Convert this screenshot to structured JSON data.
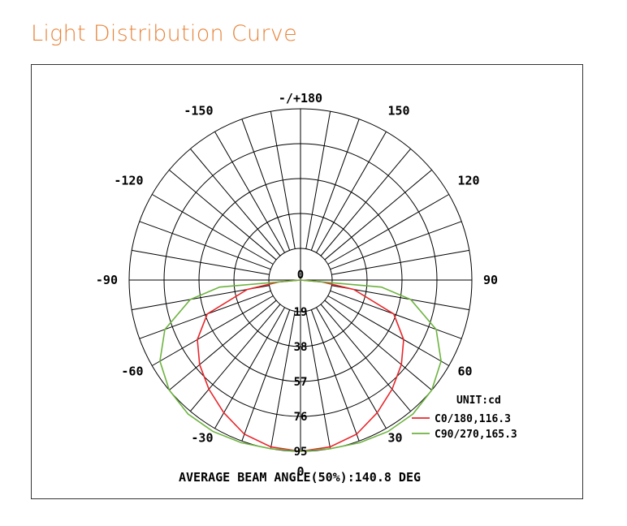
{
  "page": {
    "title": "Light Distribution Curve"
  },
  "chart_data": {
    "type": "polar",
    "title": "Light Distribution Curve",
    "unit_label": "UNIT:cd",
    "radial_ticks": [
      "0",
      "19",
      "38",
      "57",
      "76",
      "95"
    ],
    "radial_max": 95,
    "angle_labels": [
      {
        "text": "-/+180",
        "angle": 180
      },
      {
        "text": "150",
        "angle": 150
      },
      {
        "text": "-150",
        "angle": -150
      },
      {
        "text": "120",
        "angle": 120
      },
      {
        "text": "-120",
        "angle": -120
      },
      {
        "text": "90",
        "angle": 90
      },
      {
        "text": "-90",
        "angle": -90
      },
      {
        "text": "60",
        "angle": 60
      },
      {
        "text": "-60",
        "angle": -60
      },
      {
        "text": "30",
        "angle": 30
      },
      {
        "text": "-30",
        "angle": -30
      },
      {
        "text": "0",
        "angle": 0
      }
    ],
    "spoke_step_deg": 10,
    "series": [
      {
        "name": "C0/180,116.3",
        "color": "#e8262a",
        "angles": [
          0,
          10,
          20,
          30,
          40,
          50,
          60,
          70,
          80,
          85,
          90
        ],
        "values": [
          95,
          94,
          91,
          85,
          79,
          73,
          66,
          55,
          30,
          12,
          0
        ]
      },
      {
        "name": "C90/270,165.3",
        "color": "#6db33f",
        "angles": [
          0,
          10,
          20,
          30,
          40,
          50,
          60,
          70,
          80,
          85,
          90
        ],
        "values": [
          95,
          95,
          96,
          97,
          97,
          95,
          90,
          80,
          62,
          45,
          0
        ]
      }
    ],
    "footer": "AVERAGE BEAM ANGLE(50%):140.8 DEG"
  }
}
